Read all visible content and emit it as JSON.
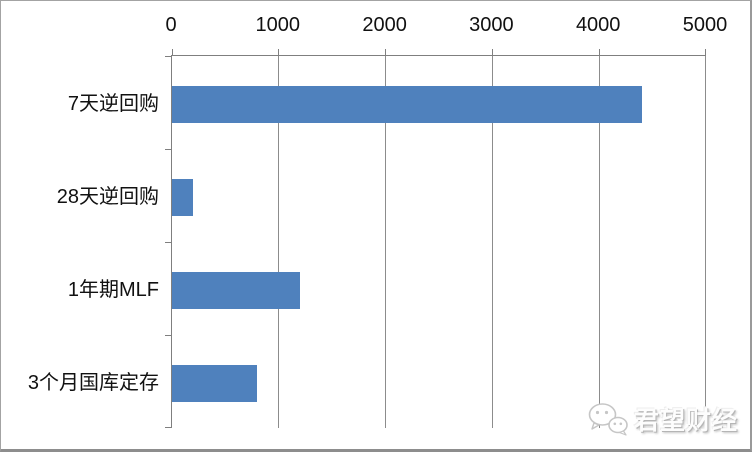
{
  "chart_data": {
    "type": "bar",
    "orientation": "horizontal",
    "title": "",
    "categories": [
      "7天逆回购",
      "28天逆回购",
      "1年期MLF",
      "3个月国库定存"
    ],
    "values": [
      4400,
      200,
      1200,
      800
    ],
    "x_axis": {
      "position": "top",
      "ticks": [
        0,
        1000,
        2000,
        3000,
        4000,
        5000
      ],
      "min": 0,
      "max": 5000
    },
    "ylabel": "",
    "xlabel": "",
    "legend": "none",
    "grid": "vertical-gridlines",
    "bar_color": "#4F81BD",
    "gridline_color": "#8c8c8c",
    "axis_color": "#7f7f7f",
    "label_color": "#111111"
  },
  "watermark": {
    "icon": "wechat-icon",
    "text": "君望财经"
  }
}
